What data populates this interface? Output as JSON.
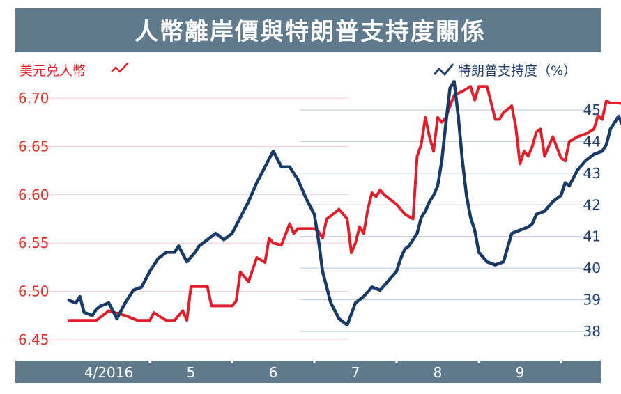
{
  "chart_data": {
    "type": "line",
    "title": "人幣離岸價與特朗普支持度關係",
    "left_axis": {
      "label": "美元兑人幣",
      "ticks": [
        "6.70",
        "6.65",
        "6.60",
        "6.55",
        "6.50",
        "6.45"
      ],
      "range": [
        6.45,
        6.72
      ],
      "color": "#e8202a"
    },
    "right_axis": {
      "label": "特朗普支持度（%）",
      "ticks": [
        "45",
        "44",
        "43",
        "42",
        "41",
        "40",
        "39",
        "38"
      ],
      "range": [
        37.8,
        45.5
      ],
      "color": "#1f3f6b"
    },
    "x_months": [
      "4/2016",
      "5",
      "6",
      "7",
      "8",
      "9"
    ],
    "series": [
      {
        "axis": "left",
        "color": "#e01f2b",
        "x": [
          0,
          0.2,
          0.35,
          0.5,
          0.7,
          0.85,
          1.0,
          1.05,
          1.1,
          1.2,
          1.3,
          1.4,
          1.45,
          1.5,
          1.6,
          1.7,
          1.75,
          1.8,
          1.9,
          2.0,
          2.05,
          2.1,
          2.2,
          2.3,
          2.4,
          2.45,
          2.5,
          2.6,
          2.7,
          2.75,
          2.8,
          3.0,
          3.05,
          3.1,
          3.15,
          3.2,
          3.3,
          3.4,
          3.45,
          3.5,
          3.55,
          3.6,
          3.65,
          3.7,
          3.75,
          3.8,
          3.85,
          4.0,
          4.1,
          4.2,
          4.25,
          4.3,
          4.35,
          4.4,
          4.45,
          4.5,
          4.55,
          4.6,
          4.65,
          4.7,
          4.8,
          4.9,
          4.95,
          5.0,
          5.05,
          5.1,
          5.2,
          5.25,
          5.3,
          5.4,
          5.45,
          5.5,
          5.55,
          5.6,
          5.65,
          5.7,
          5.75,
          5.8,
          5.9,
          6.0,
          6.05,
          6.1,
          6.2,
          6.3,
          6.4,
          6.45,
          6.5,
          6.55,
          6.6,
          6.7,
          6.8,
          6.85,
          6.9,
          7.0,
          7.05,
          7.1,
          7.15,
          7.2
        ],
        "values": [
          6.47,
          6.47,
          6.47,
          6.48,
          6.475,
          6.47,
          6.47,
          6.478,
          6.475,
          6.47,
          6.47,
          6.48,
          6.47,
          6.505,
          6.505,
          6.505,
          6.485,
          6.485,
          6.485,
          6.485,
          6.49,
          6.52,
          6.51,
          6.535,
          6.53,
          6.555,
          6.55,
          6.548,
          6.57,
          6.56,
          6.565,
          6.565,
          6.562,
          6.555,
          6.575,
          6.578,
          6.585,
          6.575,
          6.54,
          6.55,
          6.567,
          6.56,
          6.585,
          6.602,
          6.598,
          6.605,
          6.6,
          6.59,
          6.58,
          6.575,
          6.64,
          6.652,
          6.68,
          6.66,
          6.645,
          6.68,
          6.675,
          6.68,
          6.692,
          6.703,
          6.707,
          6.712,
          6.698,
          6.712,
          6.712,
          6.712,
          6.678,
          6.678,
          6.685,
          6.692,
          6.67,
          6.632,
          6.645,
          6.64,
          6.65,
          6.665,
          6.668,
          6.64,
          6.66,
          6.638,
          6.635,
          6.655,
          6.66,
          6.663,
          6.668,
          6.682,
          6.678,
          6.697,
          6.695,
          6.695,
          6.693,
          6.685,
          6.698,
          6.693,
          6.682,
          6.68,
          6.69,
          6.692
        ]
      },
      {
        "axis": "right",
        "color": "#173a66",
        "x": [
          0,
          0.1,
          0.15,
          0.2,
          0.3,
          0.35,
          0.4,
          0.5,
          0.6,
          0.7,
          0.8,
          0.9,
          1.0,
          1.1,
          1.15,
          1.2,
          1.3,
          1.35,
          1.45,
          1.55,
          1.6,
          1.7,
          1.8,
          1.9,
          2.0,
          2.1,
          2.2,
          2.3,
          2.4,
          2.5,
          2.6,
          2.7,
          2.8,
          2.9,
          3.0,
          3.05,
          3.1,
          3.2,
          3.3,
          3.4,
          3.5,
          3.6,
          3.7,
          3.8,
          3.9,
          4.0,
          4.05,
          4.1,
          4.15,
          4.2,
          4.25,
          4.3,
          4.35,
          4.4,
          4.45,
          4.5,
          4.55,
          4.6,
          4.65,
          4.7,
          4.75,
          4.8,
          4.85,
          4.9,
          4.95,
          5.0,
          5.1,
          5.2,
          5.3,
          5.4,
          5.5,
          5.6,
          5.65,
          5.7,
          5.8,
          5.9,
          6.0,
          6.05,
          6.1,
          6.2,
          6.3,
          6.4,
          6.5,
          6.55,
          6.6,
          6.7,
          6.75,
          6.8,
          6.85,
          6.9,
          7.0,
          7.1,
          7.2
        ],
        "values": [
          39,
          38.9,
          39.1,
          38.6,
          38.5,
          38.7,
          38.8,
          38.9,
          38.4,
          38.9,
          39.3,
          39.4,
          39.9,
          40.3,
          40.4,
          40.5,
          40.5,
          40.7,
          40.2,
          40.5,
          40.7,
          40.9,
          41.1,
          40.9,
          41.1,
          41.6,
          42.1,
          42.7,
          43.2,
          43.7,
          43.2,
          43.2,
          42.8,
          42.2,
          41.7,
          40.9,
          39.9,
          38.9,
          38.4,
          38.2,
          38.9,
          39.1,
          39.4,
          39.3,
          39.6,
          39.9,
          40.3,
          40.6,
          40.7,
          40.9,
          41.1,
          41.6,
          41.8,
          42.1,
          42.3,
          42.6,
          43.4,
          44.6,
          45.7,
          45.9,
          44.8,
          43.4,
          42.3,
          41.6,
          41.2,
          40.5,
          40.2,
          40.1,
          40.2,
          41.1,
          41.2,
          41.3,
          41.4,
          41.7,
          41.8,
          42.1,
          42.3,
          42.7,
          42.6,
          43.1,
          43.4,
          43.6,
          43.7,
          43.9,
          44.4,
          44.8,
          44.5,
          44.2,
          43.8,
          43.4,
          43.2,
          44.4,
          44.7
        ]
      }
    ],
    "grid": true,
    "legend": "top"
  }
}
